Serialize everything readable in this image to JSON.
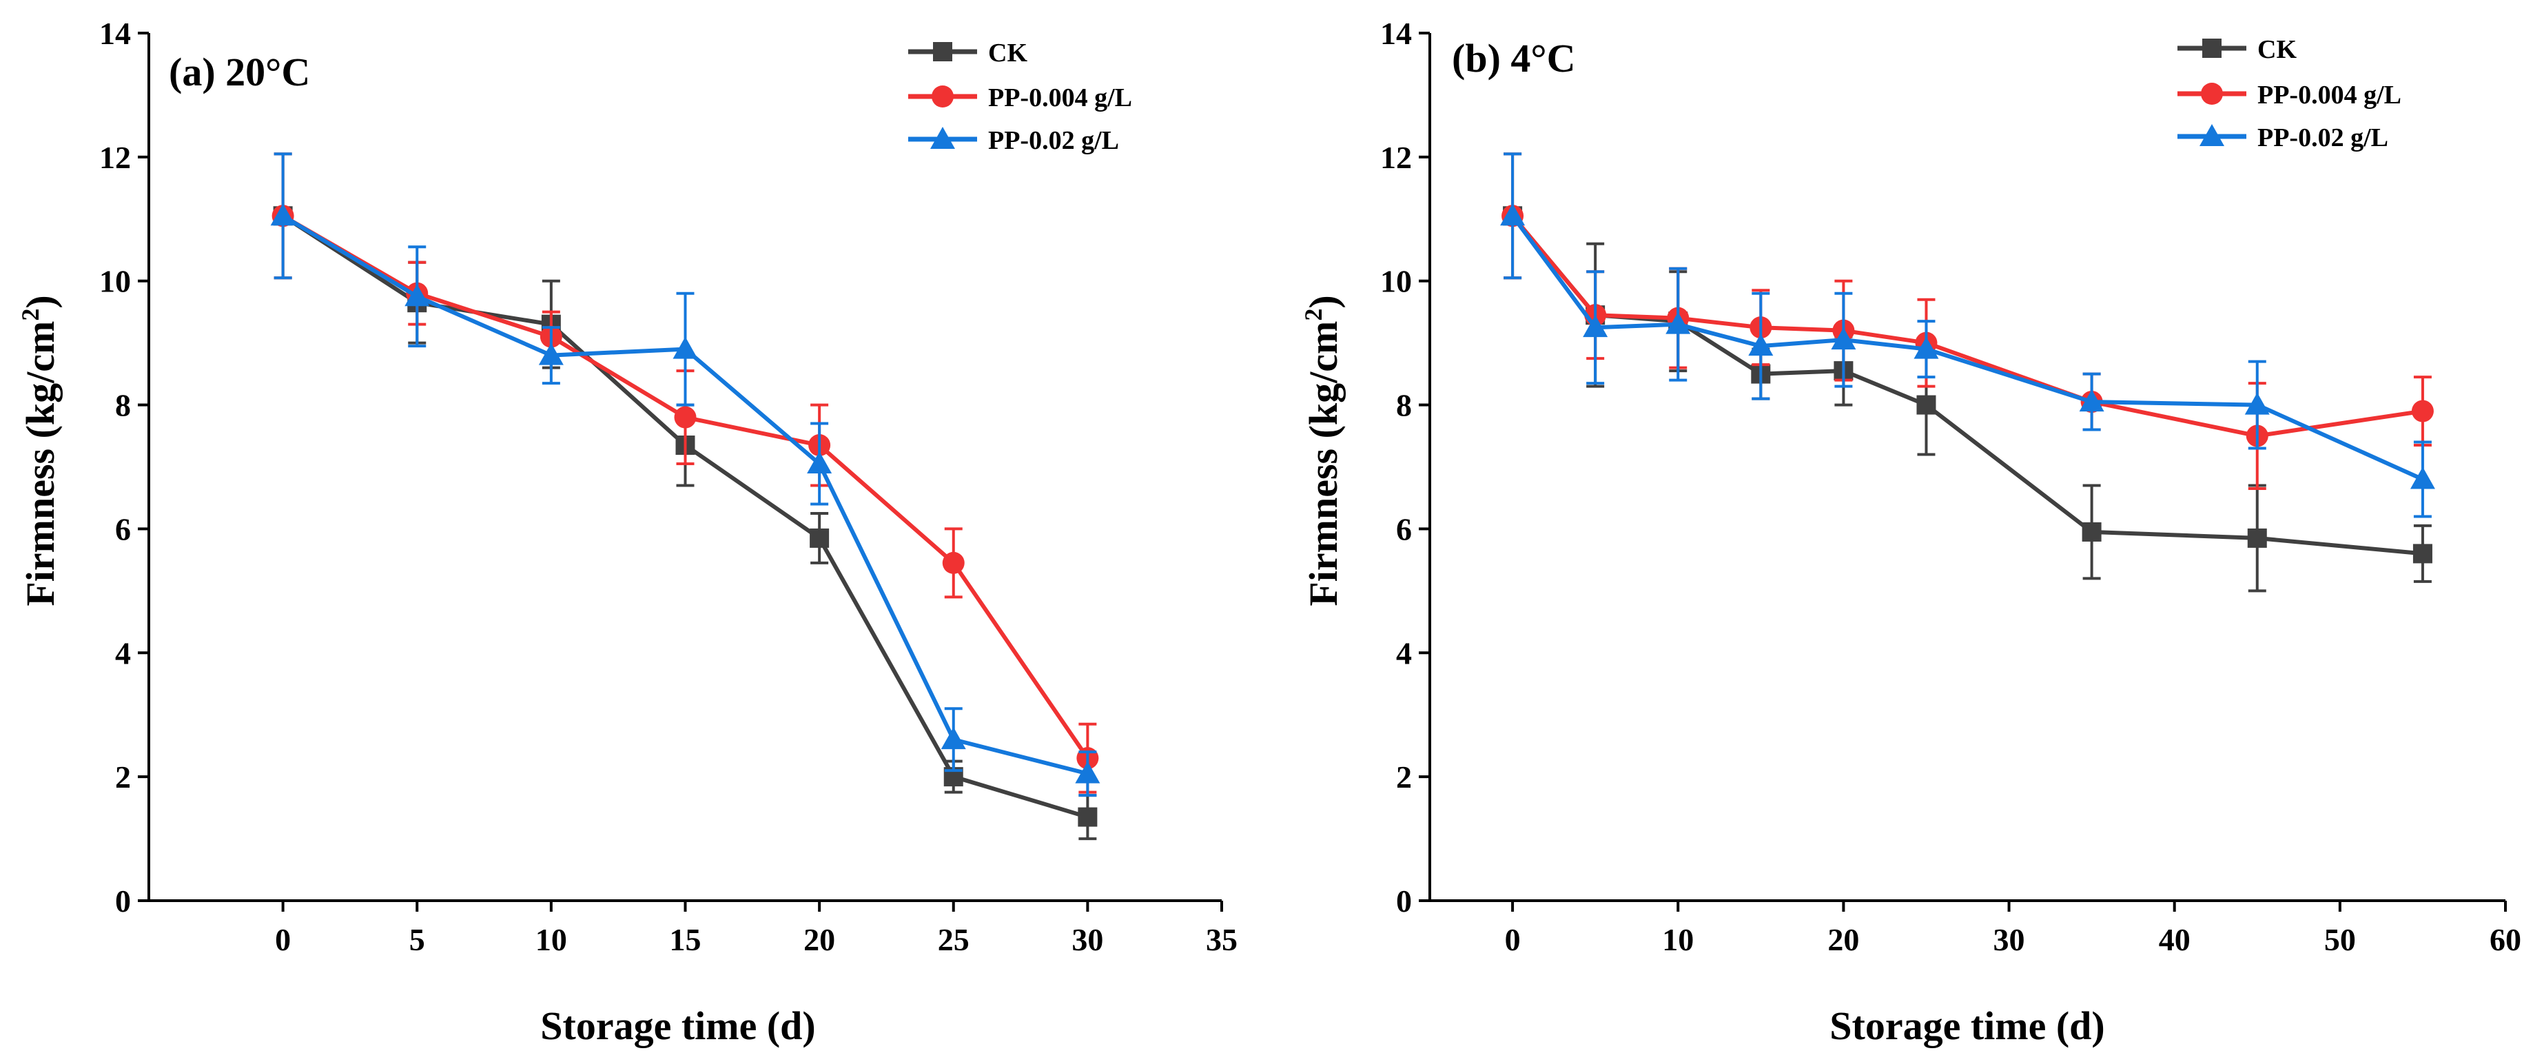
{
  "chart_data": [
    {
      "type": "line",
      "title": "(a) 20°C",
      "xlabel": "Storage time (d)",
      "ylabel_main": "Firmness (kg/cm",
      "ylabel_sup": "2",
      "ylabel_close": ")",
      "xlim": [
        -5,
        35
      ],
      "ylim": [
        0,
        14
      ],
      "xticks": [
        0,
        5,
        10,
        15,
        20,
        25,
        30,
        35
      ],
      "yticks": [
        0,
        2,
        4,
        6,
        8,
        10,
        12,
        14
      ],
      "legend_position": "top-right",
      "series": [
        {
          "name": "CK",
          "color": "#404040",
          "marker": "square",
          "x": [
            0,
            5,
            10,
            15,
            20,
            25,
            30
          ],
          "y": [
            11.05,
            9.65,
            9.3,
            7.35,
            5.85,
            2.0,
            1.35
          ],
          "err": [
            1.0,
            0.65,
            0.7,
            0.65,
            0.4,
            0.25,
            0.35
          ]
        },
        {
          "name": "PP-0.004 g/L",
          "color": "#f03232",
          "marker": "circle",
          "x": [
            0,
            5,
            10,
            15,
            20,
            25,
            30
          ],
          "y": [
            11.05,
            9.8,
            9.1,
            7.8,
            7.35,
            5.45,
            2.3
          ],
          "err": [
            1.0,
            0.5,
            0.4,
            0.75,
            0.65,
            0.55,
            0.55
          ]
        },
        {
          "name": "PP-0.02 g/L",
          "color": "#1478dc",
          "marker": "triangle",
          "x": [
            0,
            5,
            10,
            15,
            20,
            25,
            30
          ],
          "y": [
            11.05,
            9.75,
            8.8,
            8.9,
            7.05,
            2.6,
            2.05
          ],
          "err": [
            1.0,
            0.8,
            0.45,
            0.9,
            0.65,
            0.5,
            0.35
          ]
        }
      ]
    },
    {
      "type": "line",
      "title": "(b) 4°C",
      "xlabel": "Storage time (d)",
      "ylabel_main": "Firmness (kg/cm",
      "ylabel_sup": "2",
      "ylabel_close": ")",
      "xlim": [
        -5,
        60
      ],
      "ylim": [
        0,
        14
      ],
      "xticks": [
        0,
        10,
        20,
        30,
        40,
        50,
        60
      ],
      "yticks": [
        0,
        2,
        4,
        6,
        8,
        10,
        12,
        14
      ],
      "legend_position": "top-right",
      "series": [
        {
          "name": "CK",
          "color": "#404040",
          "marker": "square",
          "x": [
            0,
            5,
            10,
            15,
            20,
            25,
            35,
            45,
            55
          ],
          "y": [
            11.05,
            9.45,
            9.35,
            8.5,
            8.55,
            8.0,
            5.95,
            5.85,
            5.6
          ],
          "err": [
            1.0,
            1.15,
            0.8,
            0.4,
            0.55,
            0.8,
            0.75,
            0.85,
            0.45
          ]
        },
        {
          "name": "PP-0.004 g/L",
          "color": "#f03232",
          "marker": "circle",
          "x": [
            0,
            5,
            10,
            15,
            20,
            25,
            35,
            45,
            55
          ],
          "y": [
            11.05,
            9.45,
            9.4,
            9.25,
            9.2,
            9.0,
            8.05,
            7.5,
            7.9
          ],
          "err": [
            1.0,
            0.7,
            0.8,
            0.6,
            0.8,
            0.7,
            0.45,
            0.85,
            0.55
          ]
        },
        {
          "name": "PP-0.02 g/L",
          "color": "#1478dc",
          "marker": "triangle",
          "x": [
            0,
            5,
            10,
            15,
            20,
            25,
            35,
            45,
            55
          ],
          "y": [
            11.05,
            9.25,
            9.3,
            8.95,
            9.05,
            8.9,
            8.05,
            8.0,
            6.8
          ],
          "err": [
            1.0,
            0.9,
            0.9,
            0.85,
            0.75,
            0.45,
            0.45,
            0.7,
            0.6
          ]
        }
      ]
    }
  ]
}
